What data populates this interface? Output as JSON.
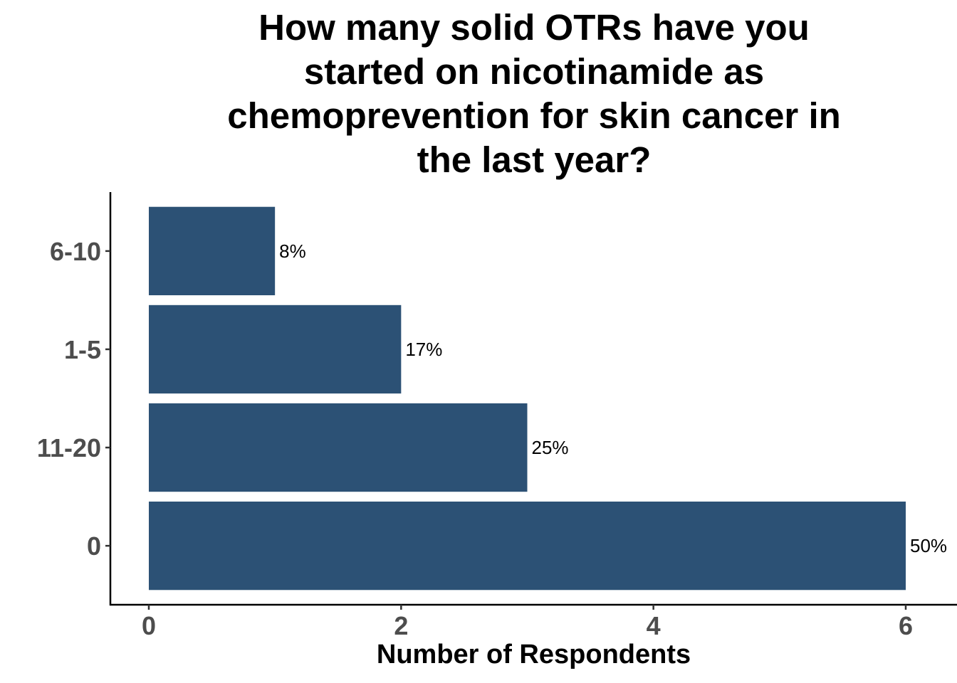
{
  "chart_data": {
    "type": "bar",
    "orientation": "horizontal",
    "title_lines": [
      "How many solid OTRs have you",
      "started on nicotinamide as",
      "chemoprevention for skin cancer in",
      "the last year?"
    ],
    "xlabel": "Number of Respondents",
    "ylabel": "",
    "categories": [
      "0",
      "11-20",
      "1-5",
      "6-10"
    ],
    "values": [
      6,
      3,
      2,
      1
    ],
    "data_labels": [
      "50%",
      "25%",
      "17%",
      "8%"
    ],
    "x_ticks": [
      0,
      2,
      4,
      6
    ],
    "xlim": [
      -0.3,
      6.4
    ],
    "bar_color": "#2C5175",
    "grid": false,
    "legend": "none"
  }
}
